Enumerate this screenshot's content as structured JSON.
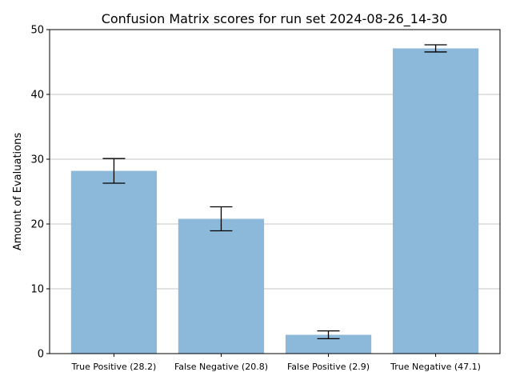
{
  "chart_data": {
    "type": "bar",
    "title": "Confusion Matrix scores for run set 2024-08-26_14-30",
    "xlabel": "",
    "ylabel": "Amount of Evaluations",
    "categories": [
      "True Positive (28.2)",
      "False Negative (20.8)",
      "False Positive (2.9)",
      "True Negative (47.1)"
    ],
    "values": [
      28.2,
      20.8,
      2.9,
      47.1
    ],
    "error": [
      1.9,
      1.85,
      0.6,
      0.55
    ],
    "ylim": [
      0,
      50
    ],
    "yticks": [
      0,
      10,
      20,
      30,
      40,
      50
    ],
    "grid": "y",
    "bar_color": "#8cb8d9",
    "error_color": "#000000",
    "grid_color": "#b0b0b0"
  }
}
